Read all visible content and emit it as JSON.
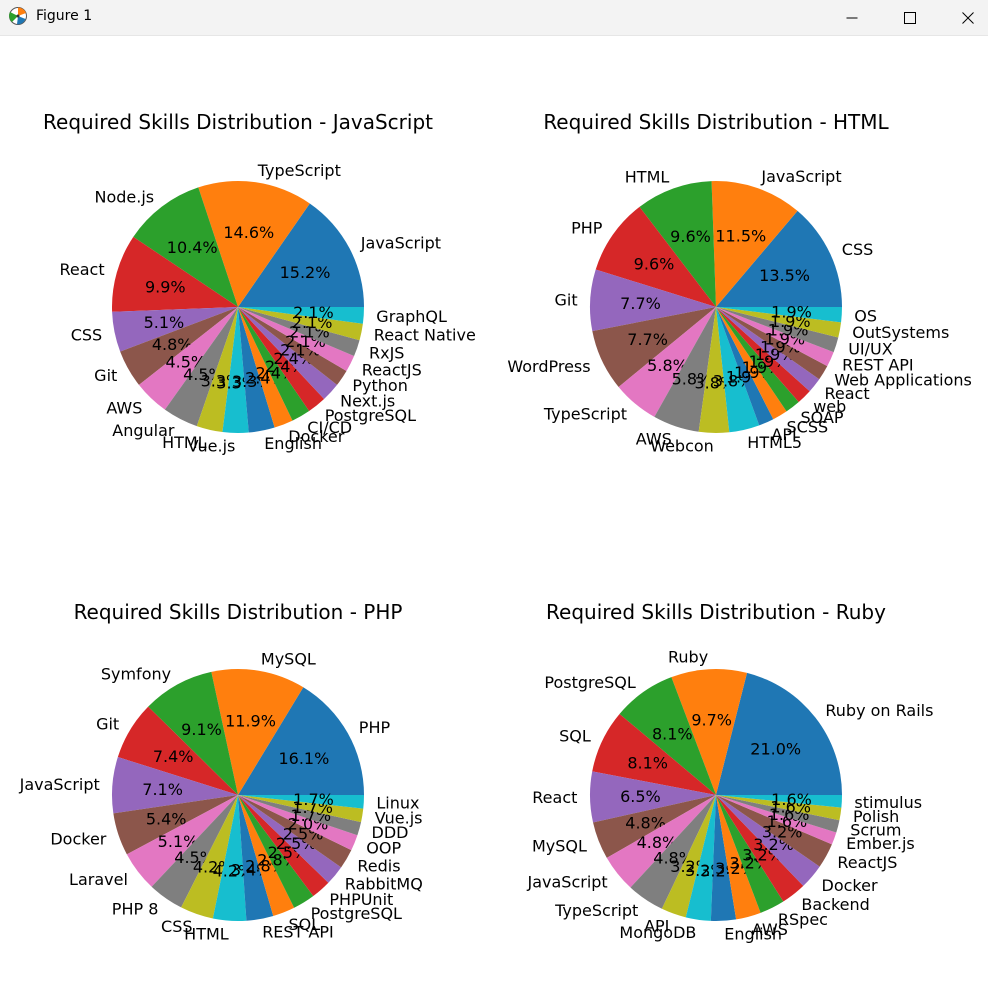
{
  "window": {
    "title": "Figure 1",
    "icons": {
      "app": "matplotlib-icon",
      "minimize": "minimize-icon",
      "maximize": "maximize-icon",
      "close": "close-icon"
    }
  },
  "palette": [
    "#1f77b4",
    "#ff7f0e",
    "#2ca02c",
    "#d62728",
    "#9467bd",
    "#8c564b",
    "#e377c2",
    "#7f7f7f",
    "#bcbd22",
    "#17becf"
  ],
  "chart_data": [
    {
      "type": "pie",
      "title": "Required Skills Distribution - JavaScript",
      "labels": [
        "JavaScript",
        "TypeScript",
        "Node.js",
        "React",
        "CSS",
        "Git",
        "AWS",
        "Angular",
        "HTML",
        "Vue.js",
        "English",
        "Docker",
        "CI/CD",
        "PostgreSQL",
        "Next.js",
        "Python",
        "ReactJS",
        "RxJS",
        "React Native",
        "GraphQL"
      ],
      "values": [
        15.2,
        14.6,
        10.4,
        9.9,
        5.1,
        4.8,
        4.5,
        4.5,
        3.3,
        3.3,
        3.3,
        2.4,
        2.4,
        2.4,
        2.4,
        2.1,
        2.1,
        2.1,
        2.1,
        2.1
      ],
      "pct_labels": [
        "15.2%",
        "14.6%",
        "10.4%",
        "9.9%",
        "5.1%",
        "4.8%",
        "4.5%",
        "4.5%",
        "3.3%",
        "3.3%",
        "3.3%",
        "2.4%",
        "2.4%",
        "2.4%",
        "2.4%",
        "2.1%",
        "2.1%",
        "2.1%",
        "2.1%",
        "2.1%"
      ]
    },
    {
      "type": "pie",
      "title": "Required Skills Distribution - HTML",
      "labels": [
        "CSS",
        "JavaScript",
        "HTML",
        "PHP",
        "Git",
        "WordPress",
        "TypeScript",
        "AWS",
        "Webcon",
        "HTML5",
        "API",
        "SCSS",
        "SOAP",
        "web",
        "React",
        "Web Applications",
        "REST API",
        "UI/UX",
        "OutSystems",
        "OS"
      ],
      "values": [
        13.5,
        11.5,
        9.6,
        9.6,
        7.7,
        7.7,
        5.8,
        5.8,
        3.8,
        3.8,
        1.9,
        1.9,
        1.9,
        1.9,
        1.9,
        1.9,
        1.9,
        1.9,
        1.9,
        1.9
      ],
      "pct_labels": [
        "13.5%",
        "11.5%",
        "9.6%",
        "9.6%",
        "7.7%",
        "7.7%",
        "5.8%",
        "5.8%",
        "3.8%",
        "3.8%",
        "1.9%",
        "1.9%",
        "1.9%",
        "1.9%",
        "1.9%",
        "1.9%",
        "1.9%",
        "1.9%",
        "1.9%",
        "1.9%"
      ]
    },
    {
      "type": "pie",
      "title": "Required Skills Distribution - PHP",
      "labels": [
        "PHP",
        "MySQL",
        "Symfony",
        "Git",
        "JavaScript",
        "Docker",
        "Laravel",
        "PHP 8",
        "CSS",
        "HTML",
        "REST API",
        "SQL",
        "PostgreSQL",
        "PHPUnit",
        "RabbitMQ",
        "Redis",
        "OOP",
        "DDD",
        "Vue.js",
        "Linux"
      ],
      "values": [
        16.1,
        11.9,
        9.1,
        7.4,
        7.1,
        5.4,
        5.1,
        4.5,
        4.2,
        4.2,
        3.4,
        2.8,
        2.8,
        2.5,
        2.5,
        2.5,
        2.0,
        1.7,
        1.7,
        1.7
      ],
      "pct_labels": [
        "16.1%",
        "11.9%",
        "9.1%",
        "7.4%",
        "7.1%",
        "5.4%",
        "5.1%",
        "4.5%",
        "4.2%",
        "4.2%",
        "3.4%",
        "2.8%",
        "2.8%",
        "2.5%",
        "2.5%",
        "2.5%",
        "2.0%",
        "1.7%",
        "1.7%",
        "1.7%"
      ]
    },
    {
      "type": "pie",
      "title": "Required Skills Distribution - Ruby",
      "labels": [
        "Ruby on Rails",
        "Ruby",
        "PostgreSQL",
        "SQL",
        "React",
        "MySQL",
        "JavaScript",
        "TypeScript",
        "API",
        "MongoDB",
        "English",
        "AWS",
        "RSpec",
        "Backend",
        "Docker",
        "ReactJS",
        "Ember.js",
        "Scrum",
        "Polish",
        "stimulus"
      ],
      "values": [
        21.0,
        9.7,
        8.1,
        8.1,
        6.5,
        4.8,
        4.8,
        4.8,
        3.2,
        3.2,
        3.2,
        3.2,
        3.2,
        3.2,
        3.2,
        3.2,
        1.6,
        1.6,
        1.6,
        1.6
      ],
      "pct_labels": [
        "21.0%",
        "9.7%",
        "8.1%",
        "8.1%",
        "6.5%",
        "4.8%",
        "4.8%",
        "4.8%",
        "3.2%",
        "3.2%",
        "3.2%",
        "3.2%",
        "3.2%",
        "3.2%",
        "3.2%",
        "3.2%",
        "1.6%",
        "1.6%",
        "1.6%",
        "1.6%"
      ]
    }
  ]
}
